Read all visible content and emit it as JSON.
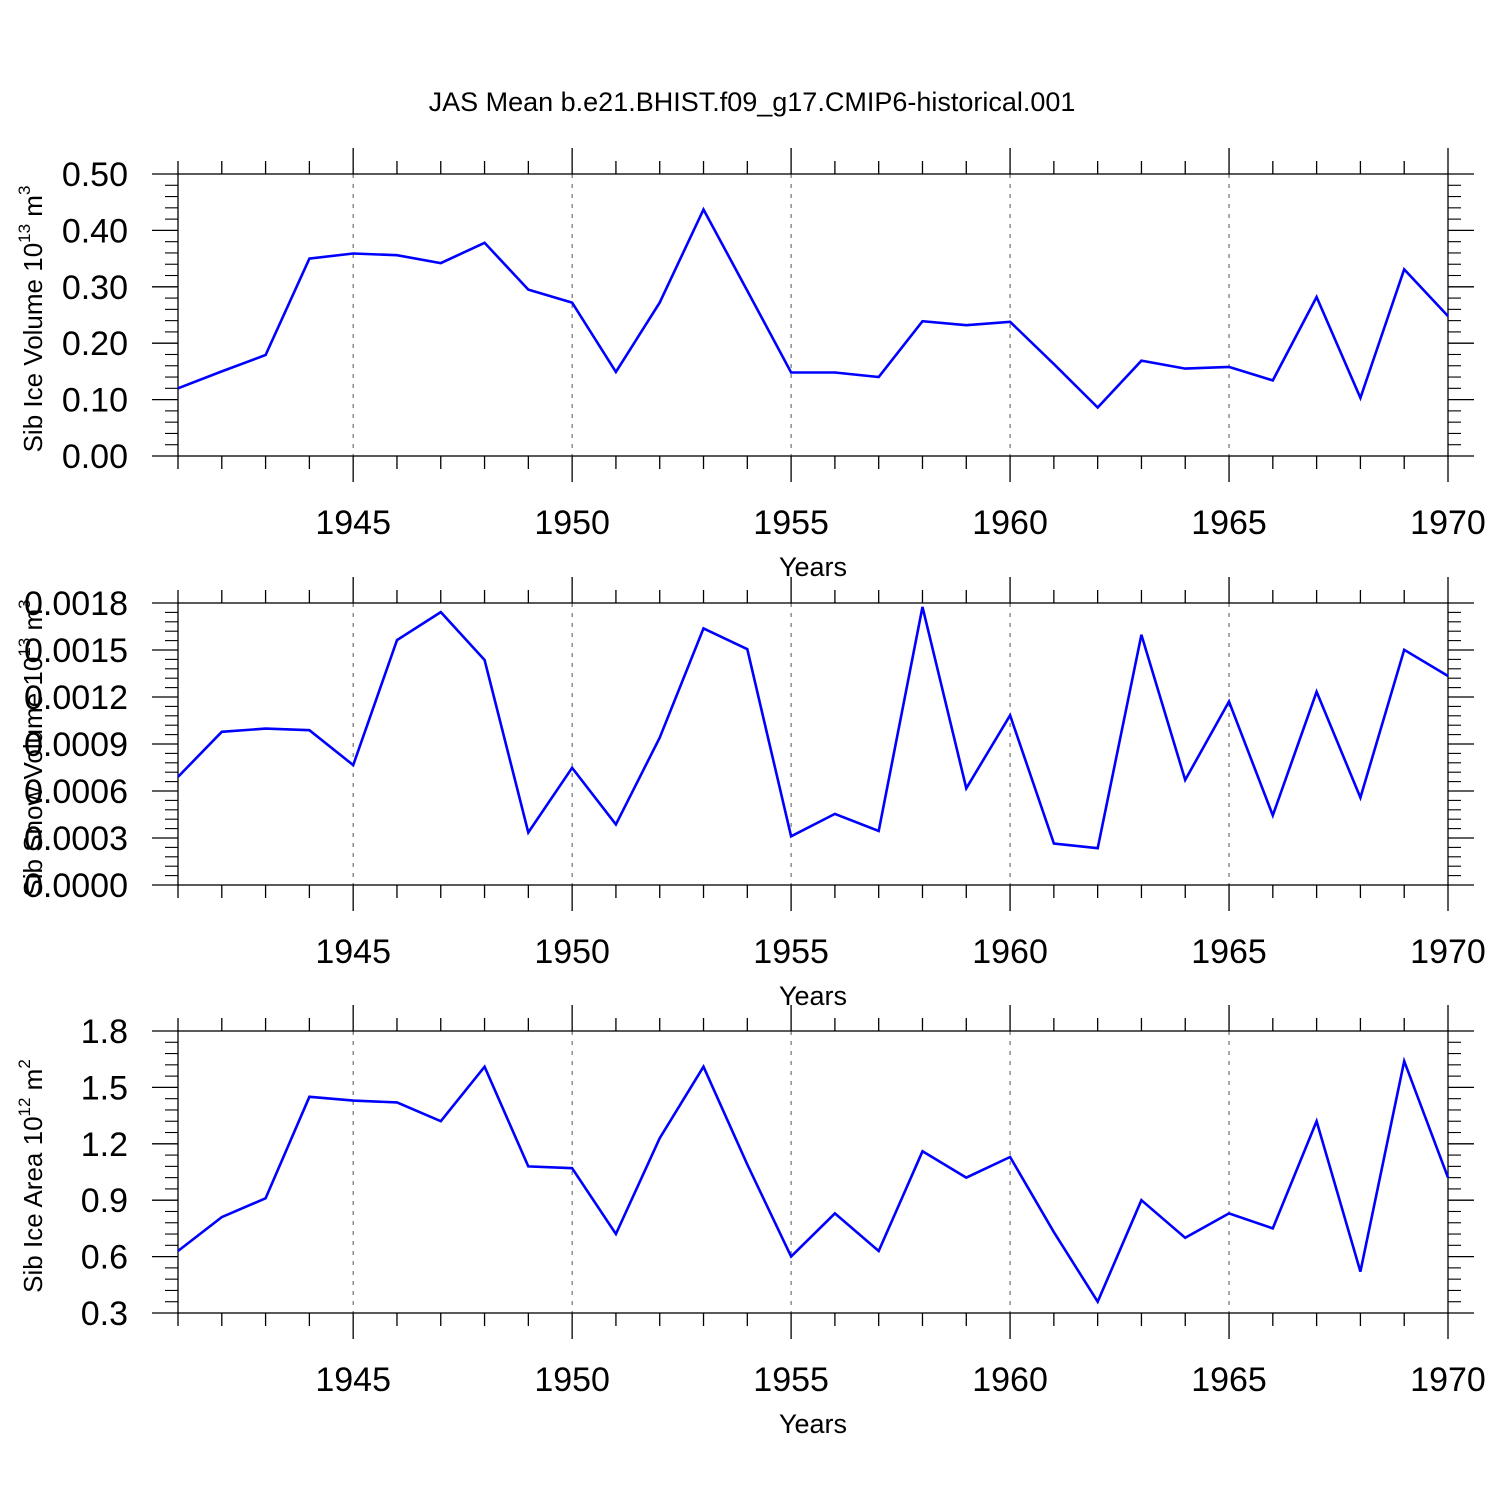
{
  "title": "JAS Mean b.e21.BHIST.f09_g17.CMIP6-historical.001",
  "colors": {
    "line": "#0000ff",
    "axis": "#000000",
    "grid": "#555555"
  },
  "chart_data": [
    {
      "type": "line",
      "ylabel": {
        "main": "Sib Ice Volume 10",
        "exp": "13",
        "unit": " m",
        "unit_exp": "3"
      },
      "xlabel": "Years",
      "xlim": [
        1941,
        1970
      ],
      "ylim": [
        0.0,
        0.5
      ],
      "x_ticks": [
        "1945",
        "1950",
        "1955",
        "1960",
        "1965",
        "1970"
      ],
      "y_ticks": [
        "0.00",
        "0.10",
        "0.20",
        "0.30",
        "0.40",
        "0.50"
      ],
      "series": [
        {
          "name": "Sib Ice Volume",
          "x": [
            1941,
            1942,
            1943,
            1944,
            1945,
            1946,
            1947,
            1948,
            1949,
            1950,
            1951,
            1952,
            1953,
            1954,
            1955,
            1956,
            1957,
            1958,
            1959,
            1960,
            1961,
            1962,
            1963,
            1964,
            1965,
            1966,
            1967,
            1968,
            1969,
            1970
          ],
          "values": [
            0.12,
            0.15,
            0.179,
            0.35,
            0.359,
            0.356,
            0.342,
            0.378,
            0.295,
            0.272,
            0.149,
            0.272,
            0.437,
            0.293,
            0.148,
            0.148,
            0.14,
            0.239,
            0.232,
            0.238,
            0.163,
            0.086,
            0.169,
            0.155,
            0.158,
            0.134,
            0.282,
            0.103,
            0.331,
            0.248
          ]
        }
      ]
    },
    {
      "type": "line",
      "ylabel": {
        "main": "Sib Snow Volume 10",
        "exp": "13",
        "unit": " m",
        "unit_exp": "3"
      },
      "xlabel": "Years",
      "xlim": [
        1941,
        1970
      ],
      "ylim": [
        0.0,
        0.0018
      ],
      "x_ticks": [
        "1945",
        "1950",
        "1955",
        "1960",
        "1965",
        "1970"
      ],
      "y_ticks": [
        "0.0000",
        "0.0003",
        "0.0006",
        "0.0009",
        "0.0012",
        "0.0015",
        "0.0018"
      ],
      "series": [
        {
          "name": "Sib Snow Volume",
          "x": [
            1941,
            1942,
            1943,
            1944,
            1945,
            1946,
            1947,
            1948,
            1949,
            1950,
            1951,
            1952,
            1953,
            1954,
            1955,
            1956,
            1957,
            1958,
            1959,
            1960,
            1961,
            1962,
            1963,
            1964,
            1965,
            1966,
            1967,
            1968,
            1969,
            1970
          ],
          "values": [
            0.00069,
            0.000978,
            0.000998,
            0.000988,
            0.000765,
            0.001563,
            0.001742,
            0.001436,
            0.000335,
            0.000748,
            0.000387,
            0.00094,
            0.001638,
            0.001505,
            0.000311,
            0.000454,
            0.000345,
            0.001775,
            0.000617,
            0.001083,
            0.000265,
            0.000235,
            0.001597,
            0.00067,
            0.001171,
            0.000444,
            0.001233,
            0.000558,
            0.001501,
            0.001334
          ]
        }
      ]
    },
    {
      "type": "line",
      "ylabel": {
        "main": "Sib Ice Area 10",
        "exp": "12",
        "unit": " m",
        "unit_exp": "2"
      },
      "xlabel": "Years",
      "xlim": [
        1941,
        1970
      ],
      "ylim": [
        0.3,
        1.8
      ],
      "x_ticks": [
        "1945",
        "1950",
        "1955",
        "1960",
        "1965",
        "1970"
      ],
      "y_ticks": [
        "0.3",
        "0.6",
        "0.9",
        "1.2",
        "1.5",
        "1.8"
      ],
      "series": [
        {
          "name": "Sib Ice Area",
          "x": [
            1941,
            1942,
            1943,
            1944,
            1945,
            1946,
            1947,
            1948,
            1949,
            1950,
            1951,
            1952,
            1953,
            1954,
            1955,
            1956,
            1957,
            1958,
            1959,
            1960,
            1961,
            1962,
            1963,
            1964,
            1965,
            1966,
            1967,
            1968,
            1969,
            1970
          ],
          "values": [
            0.63,
            0.81,
            0.91,
            1.45,
            1.43,
            1.42,
            1.32,
            1.61,
            1.08,
            1.07,
            0.72,
            1.23,
            1.61,
            1.09,
            0.6,
            0.83,
            0.63,
            1.16,
            1.02,
            1.13,
            0.73,
            0.36,
            0.9,
            0.7,
            0.83,
            0.75,
            1.32,
            0.52,
            1.64,
            1.02
          ]
        }
      ]
    }
  ]
}
